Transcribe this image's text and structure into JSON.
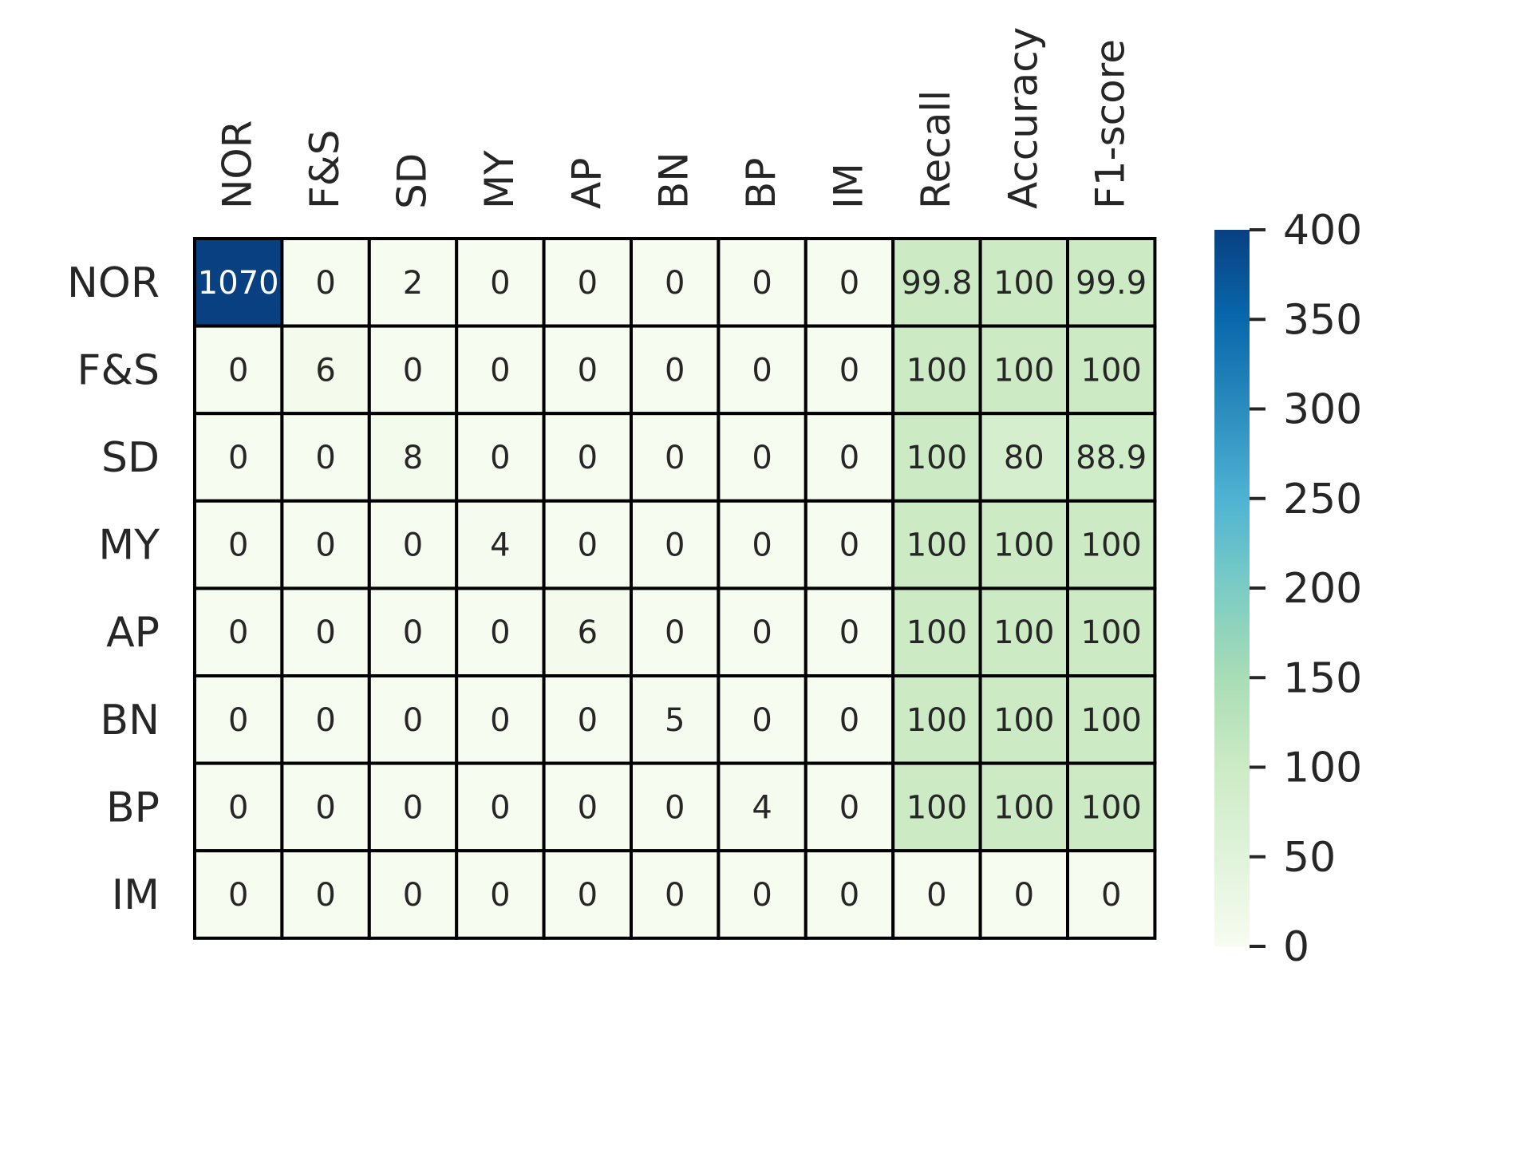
{
  "chart_data": {
    "type": "heatmap",
    "title": "",
    "xlabel": "",
    "ylabel": "",
    "columns": [
      "NOR",
      "F&S",
      "SD",
      "MY",
      "AP",
      "BN",
      "BP",
      "IM",
      "Recall",
      "Accuracy",
      "F1-score"
    ],
    "rows": [
      "NOR",
      "F&S",
      "SD",
      "MY",
      "AP",
      "BN",
      "BP",
      "IM"
    ],
    "values": [
      [
        1070,
        0,
        2,
        0,
        0,
        0,
        0,
        0,
        99.8,
        100,
        99.9
      ],
      [
        0,
        6,
        0,
        0,
        0,
        0,
        0,
        0,
        100,
        100,
        100
      ],
      [
        0,
        0,
        8,
        0,
        0,
        0,
        0,
        0,
        100,
        80,
        88.9
      ],
      [
        0,
        0,
        0,
        4,
        0,
        0,
        0,
        0,
        100,
        100,
        100
      ],
      [
        0,
        0,
        0,
        0,
        6,
        0,
        0,
        0,
        100,
        100,
        100
      ],
      [
        0,
        0,
        0,
        0,
        0,
        5,
        0,
        0,
        100,
        100,
        100
      ],
      [
        0,
        0,
        0,
        0,
        0,
        0,
        4,
        0,
        100,
        100,
        100
      ],
      [
        0,
        0,
        0,
        0,
        0,
        0,
        0,
        0,
        0,
        0,
        0
      ]
    ],
    "colormap": "GnBu",
    "colorbar": {
      "range": [
        0,
        400
      ],
      "ticks": [
        0,
        50,
        100,
        150,
        200,
        250,
        300,
        350,
        400
      ],
      "stops": [
        "#f7fcf0",
        "#e0f3db",
        "#ccebc5",
        "#a8ddb5",
        "#7bccc4",
        "#4eb3d3",
        "#2b8cbe",
        "#0868ac",
        "#084081"
      ]
    },
    "cell_border_color": "#000000",
    "text_dark": "#262626",
    "text_light": "#ffffff",
    "grid": false,
    "legend": "right"
  }
}
